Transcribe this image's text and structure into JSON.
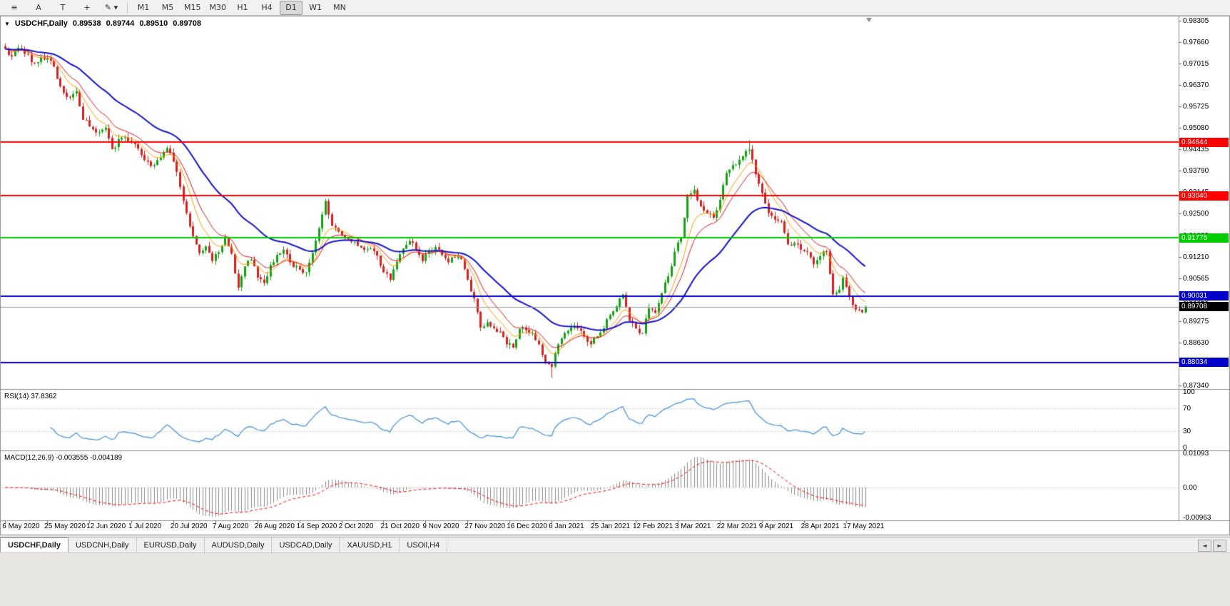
{
  "toolbar": {
    "tools": [
      {
        "name": "charts-menu",
        "glyph": "≡"
      },
      {
        "name": "cursor-tool",
        "glyph": "A"
      },
      {
        "name": "text-tool",
        "glyph": "T"
      },
      {
        "name": "crosshair-tool",
        "glyph": "+"
      },
      {
        "name": "draw-tools",
        "glyph": "✎ ▾"
      }
    ],
    "timeframes": [
      "M1",
      "M5",
      "M15",
      "M30",
      "H1",
      "H4",
      "D1",
      "W1",
      "MN"
    ],
    "active_timeframe": "D1"
  },
  "chart": {
    "menu_marker": "▼",
    "symbol_label": "USDCHF,Daily",
    "ohlc": {
      "open": "0.89538",
      "high": "0.89744",
      "low": "0.89510",
      "close": "0.89708"
    },
    "price_axis": [
      "0.98305",
      "0.97660",
      "0.97015",
      "0.96370",
      "0.95725",
      "0.95080",
      "0.94435",
      "0.93790",
      "0.93145",
      "0.92500",
      "0.91855",
      "0.91210",
      "0.90565",
      "0.89920",
      "0.89275",
      "0.88630",
      "0.87985",
      "0.87340"
    ],
    "levels": [
      {
        "value": "0.94644",
        "price": 0.94644,
        "color": "#ff0000",
        "width": 2
      },
      {
        "value": "0.93040",
        "price": 0.9304,
        "color": "#ff0000",
        "width": 2
      },
      {
        "value": "0.91775",
        "price": 0.91775,
        "color": "#00cc00",
        "width": 2
      },
      {
        "value": "0.90031",
        "price": 0.90031,
        "color": "#0000c8",
        "width": 2
      },
      {
        "value": "0.88034",
        "price": 0.88034,
        "color": "#0000c8",
        "width": 2
      }
    ],
    "current_price": {
      "value": "0.89708",
      "price": 0.89708,
      "line_color": "#9a9a9a",
      "tag_bg": "#000000"
    }
  },
  "chart_data": {
    "type": "candlestick",
    "symbol": "USDCHF",
    "timeframe": "Daily",
    "bars": 267,
    "price_range": {
      "top": 0.9838,
      "bottom": 0.8728
    },
    "x_labels": [
      "6 May 2020",
      "25 May 2020",
      "12 Jun 2020",
      "1 Jul 2020",
      "20 Jul 2020",
      "7 Aug 2020",
      "26 Aug 2020",
      "14 Sep 2020",
      "2 Oct 2020",
      "21 Oct 2020",
      "9 Nov 2020",
      "27 Nov 2020",
      "16 Dec 2020",
      "6 Jan 2021",
      "25 Jan 2021",
      "12 Feb 2021",
      "3 Mar 2021",
      "22 Mar 2021",
      "9 Apr 2021",
      "28 Apr 2021",
      "17 May 2021"
    ],
    "label_every_bars": 13,
    "close_anchors": [
      [
        0,
        0.9745
      ],
      [
        2,
        0.9722
      ],
      [
        4,
        0.9748
      ],
      [
        6,
        0.973
      ],
      [
        9,
        0.9703
      ],
      [
        11,
        0.972
      ],
      [
        13,
        0.9717
      ],
      [
        15,
        0.9692
      ],
      [
        16,
        0.9655
      ],
      [
        18,
        0.9613
      ],
      [
        20,
        0.96
      ],
      [
        22,
        0.9618
      ],
      [
        24,
        0.9532
      ],
      [
        26,
        0.9512
      ],
      [
        28,
        0.9494
      ],
      [
        31,
        0.9508
      ],
      [
        33,
        0.9444
      ],
      [
        36,
        0.9478
      ],
      [
        39,
        0.9464
      ],
      [
        42,
        0.9426
      ],
      [
        45,
        0.9393
      ],
      [
        48,
        0.9418
      ],
      [
        50,
        0.9447
      ],
      [
        52,
        0.9406
      ],
      [
        54,
        0.933
      ],
      [
        56,
        0.9252
      ],
      [
        58,
        0.9182
      ],
      [
        60,
        0.9132
      ],
      [
        62,
        0.9152
      ],
      [
        64,
        0.9108
      ],
      [
        66,
        0.9134
      ],
      [
        68,
        0.9176
      ],
      [
        70,
        0.913
      ],
      [
        72,
        0.9028
      ],
      [
        74,
        0.9092
      ],
      [
        76,
        0.9112
      ],
      [
        78,
        0.9058
      ],
      [
        80,
        0.9042
      ],
      [
        82,
        0.9096
      ],
      [
        84,
        0.9126
      ],
      [
        86,
        0.9142
      ],
      [
        88,
        0.9104
      ],
      [
        91,
        0.9082
      ],
      [
        93,
        0.9074
      ],
      [
        95,
        0.9132
      ],
      [
        97,
        0.9206
      ],
      [
        99,
        0.9288
      ],
      [
        101,
        0.9214
      ],
      [
        103,
        0.9196
      ],
      [
        105,
        0.918
      ],
      [
        107,
        0.9166
      ],
      [
        110,
        0.9148
      ],
      [
        113,
        0.9146
      ],
      [
        115,
        0.9124
      ],
      [
        117,
        0.9074
      ],
      [
        119,
        0.9052
      ],
      [
        121,
        0.9106
      ],
      [
        123,
        0.9146
      ],
      [
        125,
        0.9168
      ],
      [
        127,
        0.9142
      ],
      [
        129,
        0.9108
      ],
      [
        131,
        0.914
      ],
      [
        133,
        0.915
      ],
      [
        135,
        0.9126
      ],
      [
        137,
        0.9104
      ],
      [
        139,
        0.9118
      ],
      [
        141,
        0.9114
      ],
      [
        143,
        0.9052
      ],
      [
        145,
        0.8996
      ],
      [
        147,
        0.8908
      ],
      [
        149,
        0.8924
      ],
      [
        151,
        0.8906
      ],
      [
        153,
        0.8896
      ],
      [
        155,
        0.8858
      ],
      [
        157,
        0.8848
      ],
      [
        159,
        0.8904
      ],
      [
        161,
        0.89
      ],
      [
        163,
        0.8892
      ],
      [
        165,
        0.8858
      ],
      [
        167,
        0.8802
      ],
      [
        169,
        0.879
      ],
      [
        171,
        0.8858
      ],
      [
        173,
        0.8892
      ],
      [
        175,
        0.8908
      ],
      [
        177,
        0.8906
      ],
      [
        179,
        0.8882
      ],
      [
        181,
        0.8858
      ],
      [
        183,
        0.8882
      ],
      [
        185,
        0.8906
      ],
      [
        187,
        0.8946
      ],
      [
        189,
        0.8972
      ],
      [
        191,
        0.9008
      ],
      [
        193,
        0.8928
      ],
      [
        195,
        0.8906
      ],
      [
        197,
        0.8892
      ],
      [
        199,
        0.8966
      ],
      [
        201,
        0.8952
      ],
      [
        203,
        0.9012
      ],
      [
        205,
        0.9062
      ],
      [
        207,
        0.9136
      ],
      [
        209,
        0.9178
      ],
      [
        211,
        0.9306
      ],
      [
        213,
        0.9322
      ],
      [
        215,
        0.9272
      ],
      [
        217,
        0.9252
      ],
      [
        219,
        0.9238
      ],
      [
        221,
        0.9292
      ],
      [
        223,
        0.9372
      ],
      [
        225,
        0.9396
      ],
      [
        227,
        0.9412
      ],
      [
        229,
        0.9438
      ],
      [
        230,
        0.9442
      ],
      [
        232,
        0.9368
      ],
      [
        234,
        0.9312
      ],
      [
        236,
        0.9252
      ],
      [
        238,
        0.9232
      ],
      [
        240,
        0.9226
      ],
      [
        242,
        0.9158
      ],
      [
        244,
        0.9162
      ],
      [
        246,
        0.9142
      ],
      [
        248,
        0.9136
      ],
      [
        250,
        0.9098
      ],
      [
        252,
        0.9122
      ],
      [
        254,
        0.9136
      ],
      [
        256,
        0.9008
      ],
      [
        258,
        0.9022
      ],
      [
        259,
        0.9058
      ],
      [
        261,
        0.9002
      ],
      [
        263,
        0.8962
      ],
      [
        265,
        0.8954
      ],
      [
        266,
        0.89708
      ]
    ],
    "wick_overrides": {
      "99": {
        "high": 0.9295
      },
      "169": {
        "low": 0.8757
      },
      "230": {
        "high": 0.9471
      }
    },
    "last_bar": {
      "open": 0.89538,
      "high": 0.89744,
      "low": 0.8951,
      "close": 0.89708
    },
    "moving_averages": [
      {
        "name": "ma-fast",
        "period": 8,
        "color": "#ff9c00",
        "width": 1
      },
      {
        "name": "ma-mid",
        "period": 13,
        "color": "#e01515",
        "width": 1
      },
      {
        "name": "ma-slow",
        "period": 34,
        "color": "#1414cc",
        "width": 2
      }
    ],
    "candle_up_color": "#14a114",
    "candle_down_color": "#d62020",
    "indicators": {
      "rsi": {
        "period": 14,
        "last": 37.8362
      },
      "macd": {
        "fast": 12,
        "slow": 26,
        "signal": 9,
        "last": -0.003555,
        "last_signal": -0.004189
      }
    }
  },
  "rsi_panel": {
    "label": "RSI(14) 37.8362",
    "axis": [
      "100",
      "70",
      "30",
      "0"
    ],
    "line_color": "#3e8ede"
  },
  "macd_panel": {
    "label": "MACD(12,26,9) -0.003555 -0.004189",
    "axis": [
      "0.01093",
      "0.00",
      "-0.00963"
    ],
    "hist_color": "#8a8a8a",
    "signal_color": "#ff0000"
  },
  "tabs": {
    "items": [
      {
        "label": "USDCHF,Daily",
        "active": true
      },
      {
        "label": "USDCNH,Daily",
        "active": false
      },
      {
        "label": "EURUSD,Daily",
        "active": false
      },
      {
        "label": "AUDUSD,Daily",
        "active": false
      },
      {
        "label": "USDCAD,Daily",
        "active": false
      },
      {
        "label": "XAUUSD,H1",
        "active": false
      },
      {
        "label": "USOil,H4",
        "active": false
      }
    ],
    "scroll_left": "◄",
    "scroll_right": "►"
  }
}
